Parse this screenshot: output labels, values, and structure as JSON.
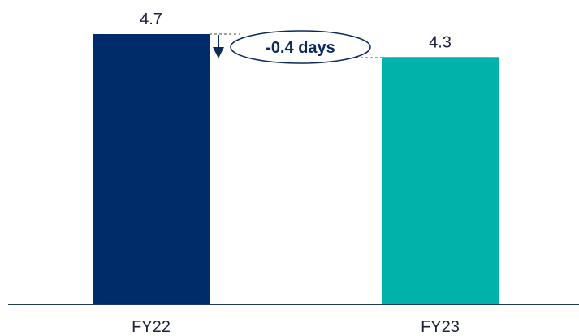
{
  "chart_data": {
    "type": "bar",
    "categories": [
      "FY22",
      "FY23"
    ],
    "values": [
      4.7,
      4.3
    ],
    "value_labels": [
      "4.7",
      "4.3"
    ],
    "title": "",
    "xlabel": "",
    "ylabel": "",
    "ylim": [
      0,
      4.7
    ],
    "grid": false,
    "legend": "none",
    "colors": [
      "#002d6a",
      "#00b2a9"
    ],
    "axis_color": "#1f3864",
    "annotation": {
      "text": "-0.4 days",
      "color": "#0b2a5a"
    }
  }
}
